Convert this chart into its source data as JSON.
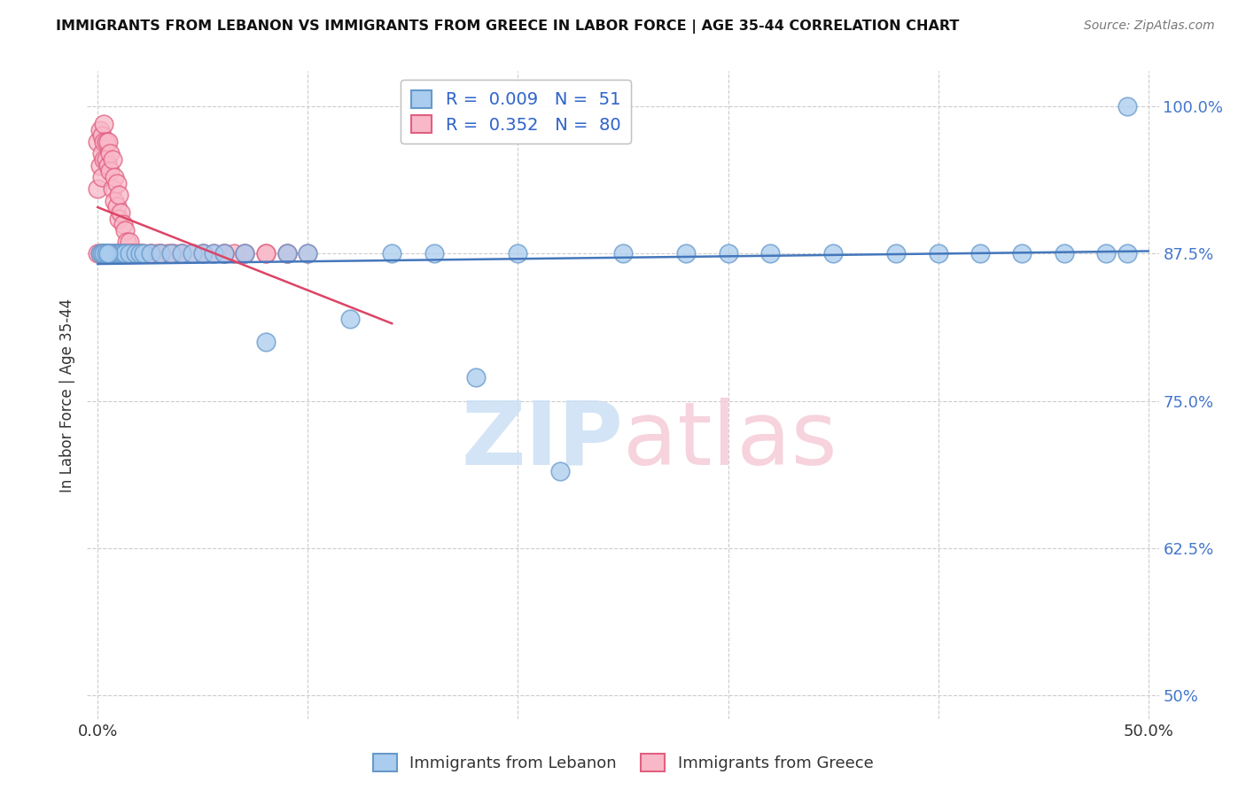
{
  "title": "IMMIGRANTS FROM LEBANON VS IMMIGRANTS FROM GREECE IN LABOR FORCE | AGE 35-44 CORRELATION CHART",
  "source": "Source: ZipAtlas.com",
  "ylabel": "In Labor Force | Age 35-44",
  "xlim": [
    -0.005,
    0.505
  ],
  "ylim": [
    0.48,
    1.03
  ],
  "xticks": [
    0.0,
    0.1,
    0.2,
    0.3,
    0.4,
    0.5
  ],
  "xtick_labels": [
    "0.0%",
    "",
    "",
    "",
    "",
    "50.0%"
  ],
  "yticks": [
    0.5,
    0.625,
    0.75,
    0.875,
    1.0
  ],
  "ytick_labels": [
    "50%",
    "62.5%",
    "75.0%",
    "87.5%",
    "100.0%"
  ],
  "legend_R1": "0.009",
  "legend_N1": "51",
  "legend_R2": "0.352",
  "legend_N2": "80",
  "color_lebanon_face": "#aaccee",
  "color_lebanon_edge": "#6699cc",
  "color_greece_face": "#f9b8c8",
  "color_greece_edge": "#e06080",
  "color_lebanon_line": "#4477bb",
  "color_greece_line": "#dd4466",
  "watermark_zip_color": "#cce0f5",
  "watermark_atlas_color": "#f5ccd8",
  "lebanon_x": [
    0.003,
    0.004,
    0.005,
    0.006,
    0.007,
    0.008,
    0.009,
    0.01,
    0.011,
    0.012,
    0.013,
    0.015,
    0.018,
    0.02,
    0.022,
    0.025,
    0.03,
    0.035,
    0.04,
    0.045,
    0.05,
    0.055,
    0.06,
    0.07,
    0.08,
    0.09,
    0.1,
    0.12,
    0.14,
    0.16,
    0.18,
    0.2,
    0.22,
    0.25,
    0.28,
    0.3,
    0.32,
    0.35,
    0.38,
    0.4,
    0.42,
    0.44,
    0.46,
    0.48,
    0.49,
    0.001,
    0.002,
    0.003,
    0.004,
    0.005,
    0.49
  ],
  "lebanon_y": [
    0.875,
    0.875,
    0.875,
    0.875,
    0.875,
    0.875,
    0.875,
    0.875,
    0.875,
    0.875,
    0.875,
    0.875,
    0.875,
    0.875,
    0.875,
    0.875,
    0.875,
    0.875,
    0.875,
    0.875,
    0.875,
    0.875,
    0.875,
    0.875,
    0.8,
    0.875,
    0.875,
    0.82,
    0.875,
    0.875,
    0.77,
    0.875,
    0.69,
    0.875,
    0.875,
    0.875,
    0.875,
    0.875,
    0.875,
    0.875,
    0.875,
    0.875,
    0.875,
    0.875,
    0.875,
    0.875,
    0.875,
    0.875,
    0.875,
    0.875,
    1.0
  ],
  "greece_x": [
    0.0,
    0.0,
    0.001,
    0.001,
    0.002,
    0.002,
    0.002,
    0.003,
    0.003,
    0.003,
    0.004,
    0.004,
    0.005,
    0.005,
    0.006,
    0.006,
    0.007,
    0.007,
    0.008,
    0.008,
    0.009,
    0.009,
    0.01,
    0.01,
    0.011,
    0.012,
    0.013,
    0.014,
    0.015,
    0.016,
    0.017,
    0.018,
    0.019,
    0.02,
    0.022,
    0.025,
    0.028,
    0.03,
    0.033,
    0.036,
    0.04,
    0.045,
    0.05,
    0.055,
    0.06,
    0.065,
    0.07,
    0.08,
    0.09,
    0.1,
    0.0,
    0.001,
    0.002,
    0.003,
    0.004,
    0.005,
    0.006,
    0.007,
    0.008,
    0.009,
    0.01,
    0.011,
    0.012,
    0.013,
    0.014,
    0.015,
    0.016,
    0.017,
    0.018,
    0.019,
    0.02,
    0.025,
    0.03,
    0.035,
    0.04,
    0.05,
    0.06,
    0.07,
    0.08,
    0.09
  ],
  "greece_y": [
    0.97,
    0.93,
    0.98,
    0.95,
    0.975,
    0.96,
    0.94,
    0.985,
    0.97,
    0.955,
    0.97,
    0.955,
    0.97,
    0.95,
    0.96,
    0.945,
    0.955,
    0.93,
    0.94,
    0.92,
    0.935,
    0.915,
    0.925,
    0.905,
    0.91,
    0.9,
    0.895,
    0.885,
    0.885,
    0.875,
    0.875,
    0.875,
    0.875,
    0.875,
    0.875,
    0.875,
    0.875,
    0.875,
    0.875,
    0.875,
    0.875,
    0.875,
    0.875,
    0.875,
    0.875,
    0.875,
    0.875,
    0.875,
    0.875,
    0.875,
    0.875,
    0.875,
    0.875,
    0.875,
    0.875,
    0.875,
    0.875,
    0.875,
    0.875,
    0.875,
    0.875,
    0.875,
    0.875,
    0.875,
    0.875,
    0.875,
    0.875,
    0.875,
    0.875,
    0.875,
    0.875,
    0.875,
    0.875,
    0.875,
    0.875,
    0.875,
    0.875,
    0.875,
    0.875,
    0.875
  ]
}
